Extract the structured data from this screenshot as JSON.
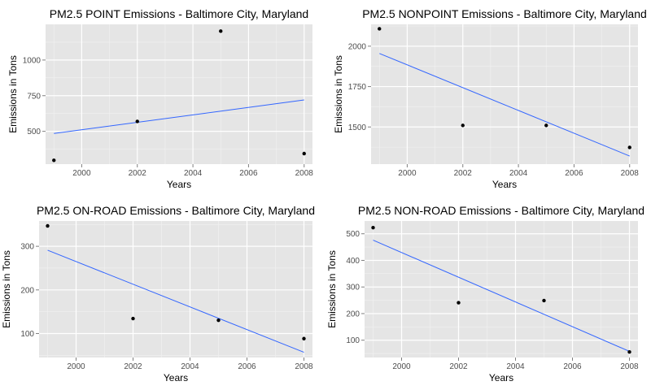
{
  "style": {
    "panel_bg": "#e5e5e5",
    "grid_major": "#ffffff",
    "grid_minor": "#f2f2f2",
    "point_color": "#000000",
    "line_color": "#3366ff",
    "tick_label_color": "#4d4d4d"
  },
  "chart_data": [
    {
      "type": "scatter",
      "title": "PM2.5 POINT Emissions - Baltimore City, Maryland",
      "xlabel": "Years",
      "ylabel": "Emissions in Tons",
      "xlim": [
        1998.7,
        2008.3
      ],
      "ylim": [
        270,
        1250
      ],
      "xticks": [
        2000,
        2002,
        2004,
        2006,
        2008
      ],
      "yticks": [
        500,
        750,
        1000
      ],
      "x": [
        1999,
        2002,
        2005,
        2008
      ],
      "y": [
        296.8,
        569.3,
        1202.5,
        344.0
      ],
      "fit_line": {
        "x": [
          1999,
          2008
        ],
        "y": [
          485,
          720
        ]
      },
      "grid": true,
      "legend": "none"
    },
    {
      "type": "scatter",
      "title": "PM2.5 NONPOINT Emissions - Baltimore City, Maryland",
      "xlabel": "Years",
      "ylabel": "Emissions in Tons",
      "xlim": [
        1998.7,
        2008.3
      ],
      "ylim": [
        1270,
        2135
      ],
      "xticks": [
        2000,
        2002,
        2004,
        2006,
        2008
      ],
      "yticks": [
        1500,
        1750,
        2000
      ],
      "x": [
        1999,
        2002,
        2005,
        2008
      ],
      "y": [
        2107.6,
        1509.5,
        1509.5,
        1373.2
      ],
      "fit_line": {
        "x": [
          1999,
          2008
        ],
        "y": [
          1955,
          1320
        ]
      },
      "grid": true,
      "legend": "none"
    },
    {
      "type": "scatter",
      "title": "PM2.5 ON-ROAD Emissions - Baltimore City, Maryland",
      "xlabel": "Years",
      "ylabel": "Emissions in Tons",
      "xlim": [
        1998.7,
        2008.3
      ],
      "ylim": [
        45,
        358
      ],
      "xticks": [
        2000,
        2002,
        2004,
        2006,
        2008
      ],
      "yticks": [
        100,
        200,
        300
      ],
      "x": [
        1999,
        2002,
        2005,
        2008
      ],
      "y": [
        346.8,
        134.3,
        130.4,
        88.3
      ],
      "fit_line": {
        "x": [
          1999,
          2008
        ],
        "y": [
          291,
          57
        ]
      },
      "grid": true,
      "legend": "none"
    },
    {
      "type": "scatter",
      "title": "PM2.5 NON-ROAD Emissions - Baltimore City, Maryland",
      "xlabel": "Years",
      "ylabel": "Emissions in Tons",
      "xlim": [
        1998.7,
        2008.3
      ],
      "ylim": [
        35,
        548
      ],
      "xticks": [
        2000,
        2002,
        2004,
        2006,
        2008
      ],
      "yticks": [
        100,
        200,
        300,
        400,
        500
      ],
      "x": [
        1999,
        2002,
        2005,
        2008
      ],
      "y": [
        522.9,
        240.8,
        248.9,
        55.8
      ],
      "fit_line": {
        "x": [
          1999,
          2008
        ],
        "y": [
          476,
          58
        ]
      },
      "grid": true,
      "legend": "none"
    }
  ]
}
